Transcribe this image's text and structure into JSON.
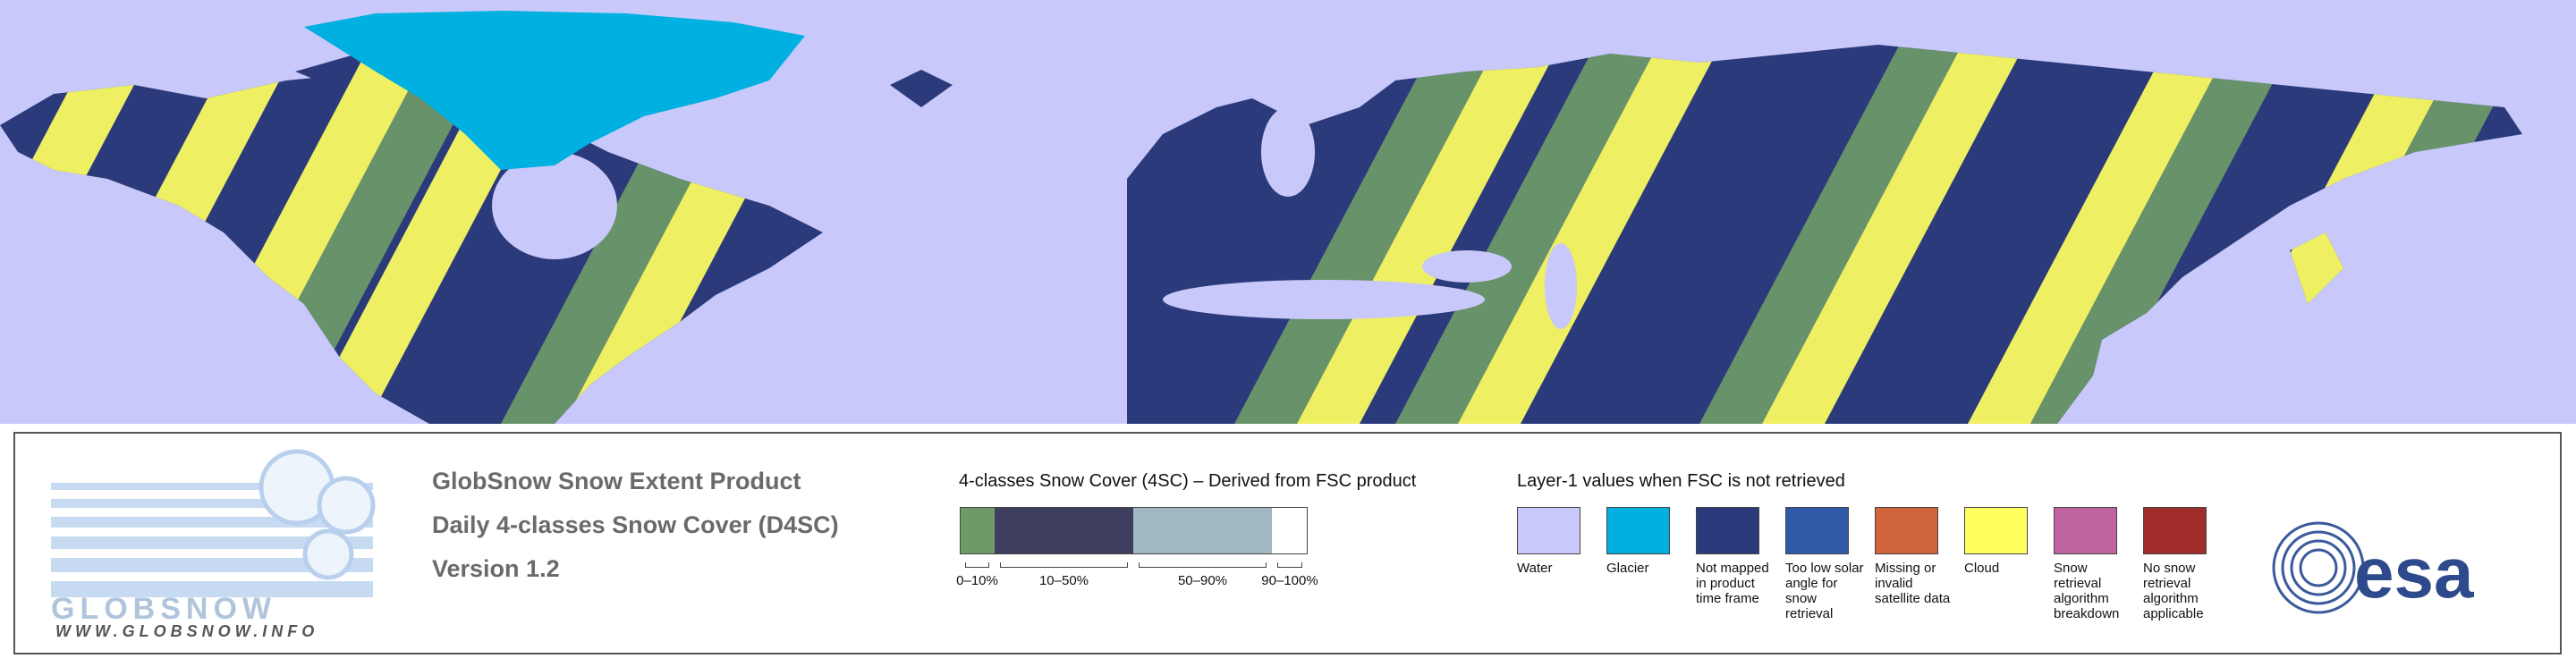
{
  "logo": {
    "name": "GLOBSNOW",
    "url": "WWW.GLOBSNOW.INFO"
  },
  "product": {
    "lines": [
      "GlobSnow Snow Extent Product",
      "Daily 4-classes Snow Cover (D4SC)",
      "Version 1.2"
    ]
  },
  "four_class_legend": {
    "title": "4-classes Snow Cover (4SC) – Derived from FSC product",
    "classes": [
      {
        "label": "0–10%",
        "color": "#6e9a68"
      },
      {
        "label": "10–50%",
        "color": "#3e3e5e"
      },
      {
        "label": "50–90%",
        "color": "#a0b8c0"
      },
      {
        "label": "90–100%",
        "color": "#ffffff"
      }
    ]
  },
  "layer1_legend": {
    "title": "Layer-1 values when FSC is not retrieved",
    "items": [
      {
        "label": "Water",
        "color": "#c8c8fa"
      },
      {
        "label": "Glacier",
        "color": "#00b0e0"
      },
      {
        "label": "Not mapped in product time frame",
        "color": "#2b3a7a"
      },
      {
        "label": "Too low solar angle for snow retrieval",
        "color": "#2e5aa8"
      },
      {
        "label": "Missing or invalid satellite data",
        "color": "#d0643c"
      },
      {
        "label": "Cloud",
        "color": "#ffff60"
      },
      {
        "label": "Snow retrieval algorithm breakdown",
        "color": "#c064a0"
      },
      {
        "label": "No snow retrieval algorithm applicable",
        "color": "#a02c2c"
      }
    ]
  },
  "agency": "esa"
}
